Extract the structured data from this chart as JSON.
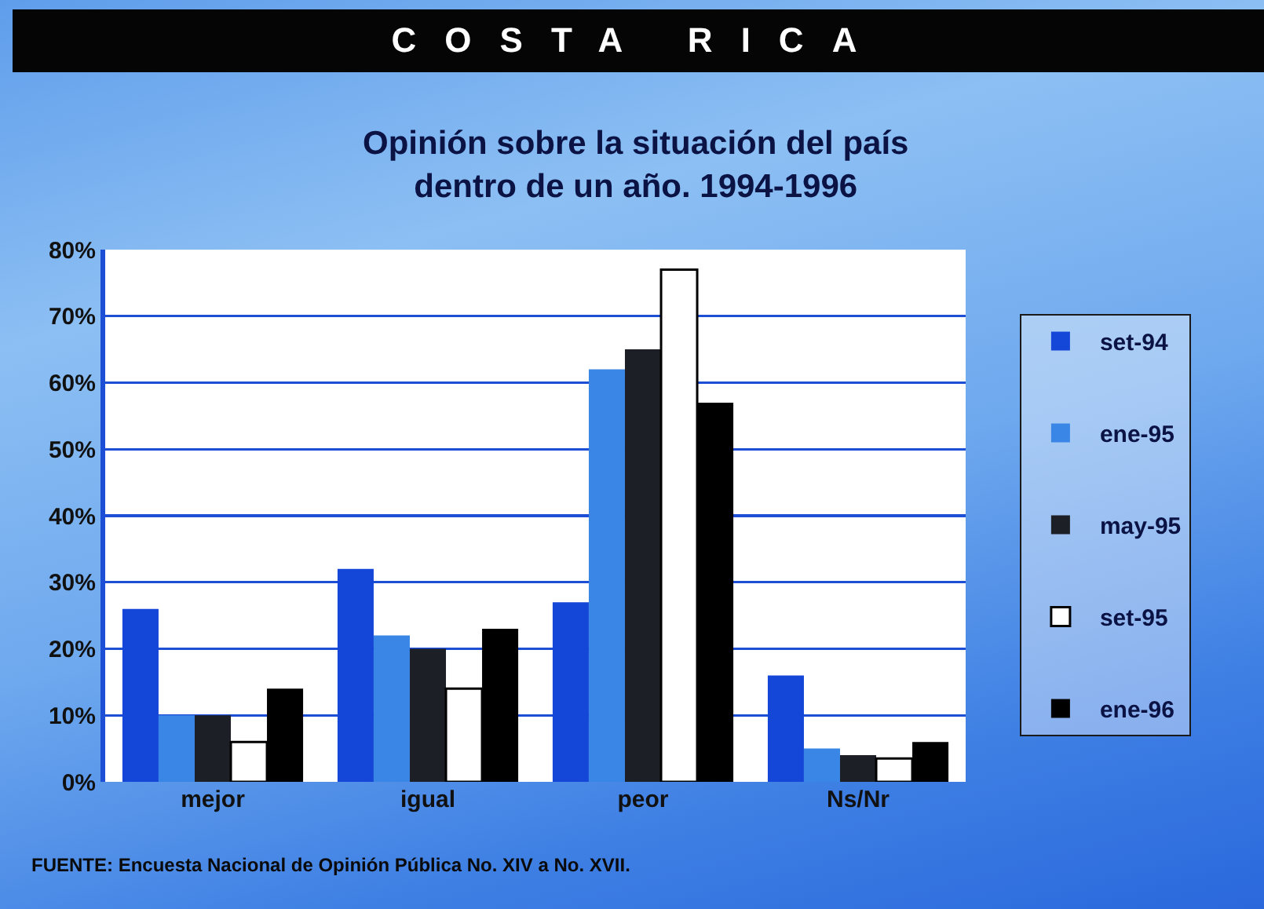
{
  "chart_data": {
    "type": "bar",
    "title": "COSTA RICA",
    "subtitle": "Opinión sobre la situación del país dentro de un año. 1994-1996",
    "categories": [
      "mejor",
      "igual",
      "peor",
      "Ns/Nr"
    ],
    "series": [
      {
        "name": "set-94",
        "color": "#1446d8",
        "values": [
          26,
          32,
          27,
          16
        ]
      },
      {
        "name": "ene-95",
        "color": "#3a86e6",
        "values": [
          10,
          22,
          62,
          5
        ]
      },
      {
        "name": "may-95",
        "color": "#1c1f26",
        "values": [
          10,
          20,
          65,
          4
        ]
      },
      {
        "name": "set-95",
        "color": "#ffffff",
        "values": [
          6,
          14,
          77,
          3.5
        ]
      },
      {
        "name": "ene-96",
        "color": "#000000",
        "values": [
          14,
          23,
          57,
          6
        ]
      }
    ],
    "ylim": [
      0,
      80
    ],
    "yticks": [
      {
        "value": 0,
        "label": "0%"
      },
      {
        "value": 10,
        "label": "10%"
      },
      {
        "value": 20,
        "label": "20%"
      },
      {
        "value": 30,
        "label": "30%"
      },
      {
        "value": 40,
        "label": "40%"
      },
      {
        "value": 50,
        "label": "50%"
      },
      {
        "value": 60,
        "label": "60%"
      },
      {
        "value": 70,
        "label": "70%"
      },
      {
        "value": 80,
        "label": "80%"
      }
    ],
    "grid": "y",
    "legend": "right",
    "annotations": [
      "FUENTE: Encuesta Nacional de Opinión Pública No. XIV a No. XVII."
    ]
  }
}
